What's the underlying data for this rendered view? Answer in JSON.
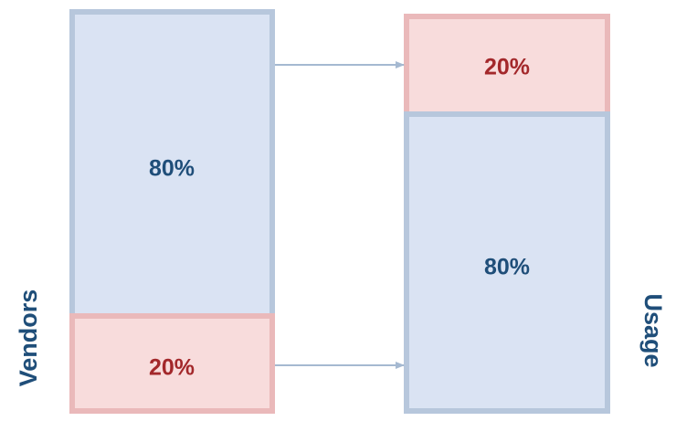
{
  "left": {
    "label": "Vendors",
    "boxes": [
      {
        "text": "80%"
      },
      {
        "text": "20%"
      }
    ]
  },
  "right": {
    "label": "Usage",
    "boxes": [
      {
        "text": "20%"
      },
      {
        "text": "80%"
      }
    ]
  }
}
